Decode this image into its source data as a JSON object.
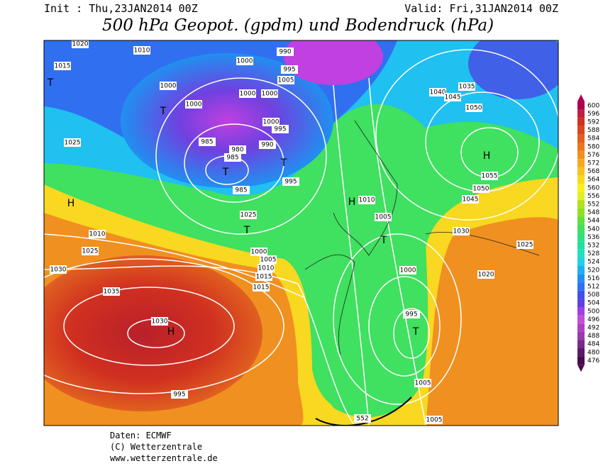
{
  "header": {
    "init": "Init : Thu,23JAN2014 00Z",
    "valid": "Valid: Fri,31JAN2014 00Z",
    "title": "500 hPa Geopot. (gpdm) und Bodendruck (hPa)"
  },
  "footer": [
    "Daten: ECMWF",
    "(C) Wetterzentrale",
    "www.wetterzentrale.de"
  ],
  "legend": [
    {
      "label": "600",
      "color": "#b00050"
    },
    {
      "label": "596",
      "color": "#c02040"
    },
    {
      "label": "592",
      "color": "#d03020"
    },
    {
      "label": "588",
      "color": "#d84820"
    },
    {
      "label": "584",
      "color": "#e06020"
    },
    {
      "label": "580",
      "color": "#e87820"
    },
    {
      "label": "576",
      "color": "#f09020"
    },
    {
      "label": "572",
      "color": "#f8a820"
    },
    {
      "label": "568",
      "color": "#f8c020"
    },
    {
      "label": "564",
      "color": "#f8d820"
    },
    {
      "label": "560",
      "color": "#f8f020"
    },
    {
      "label": "556",
      "color": "#e0f020"
    },
    {
      "label": "552",
      "color": "#b0e020"
    },
    {
      "label": "548",
      "color": "#90e020"
    },
    {
      "label": "544",
      "color": "#60e040"
    },
    {
      "label": "540",
      "color": "#40e060"
    },
    {
      "label": "536",
      "color": "#30e080"
    },
    {
      "label": "532",
      "color": "#20e0a0"
    },
    {
      "label": "528",
      "color": "#20e0c0"
    },
    {
      "label": "524",
      "color": "#20d0e8"
    },
    {
      "label": "520",
      "color": "#20b0f0"
    },
    {
      "label": "516",
      "color": "#2090f0"
    },
    {
      "label": "512",
      "color": "#3070f0"
    },
    {
      "label": "508",
      "color": "#4050e8"
    },
    {
      "label": "504",
      "color": "#6040e0"
    },
    {
      "label": "500",
      "color": "#a040e0"
    },
    {
      "label": "496",
      "color": "#c050d8"
    },
    {
      "label": "492",
      "color": "#b040c0"
    },
    {
      "label": "488",
      "color": "#9a3aaa"
    },
    {
      "label": "484",
      "color": "#7a2a8a"
    },
    {
      "label": "480",
      "color": "#5a1a6a"
    },
    {
      "label": "476",
      "color": "#4b0a4b"
    }
  ],
  "isobar_labels": [
    "1020",
    "1010",
    "1015",
    "1000",
    "1000",
    "990",
    "995",
    "1005",
    "1000",
    "1000",
    "1000",
    "1000",
    "995",
    "985",
    "980",
    "985",
    "990",
    "995",
    "985",
    "1025",
    "1025",
    "1010",
    "1025",
    "1030",
    "1035",
    "1030",
    "995",
    "1000",
    "1005",
    "1010",
    "1015",
    "1015",
    "1010",
    "1005",
    "1000",
    "995",
    "1005",
    "1005",
    "1035",
    "1040",
    "1045",
    "1050",
    "1055",
    "1050",
    "1045",
    "1030",
    "1025",
    "1020",
    "552"
  ],
  "centers": [
    "T",
    "T",
    "T",
    "T",
    "T",
    "H",
    "H",
    "H",
    "T",
    "H",
    "T"
  ]
}
